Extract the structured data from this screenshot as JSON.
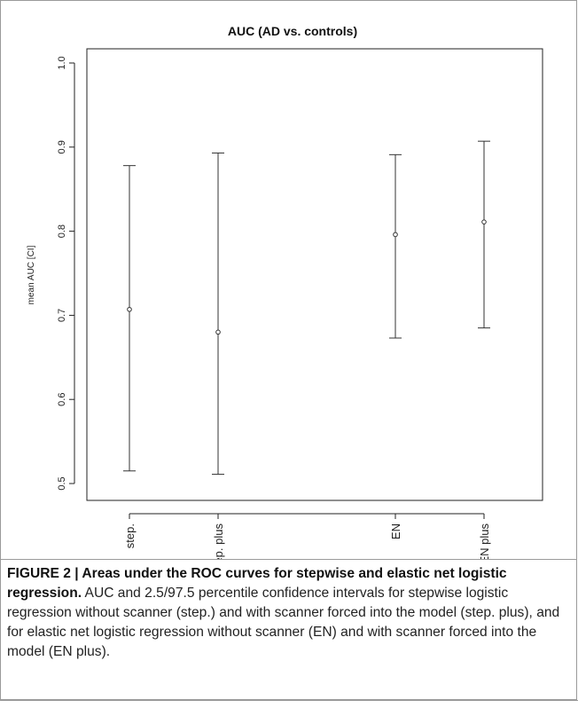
{
  "chart_data": {
    "type": "errorbar",
    "title": "AUC (AD vs. controls)",
    "xlabel": "",
    "ylabel": "mean AUC [CI]",
    "ylim": [
      0.5,
      1.0
    ],
    "yticks": [
      "0.5",
      "0.6",
      "0.7",
      "0.8",
      "0.9",
      "1.0"
    ],
    "categories": [
      "step.",
      "step. plus",
      "EN",
      "EN plus"
    ],
    "x_positions": [
      1,
      2,
      4,
      5
    ],
    "mean": [
      0.707,
      0.68,
      0.796,
      0.811
    ],
    "lower": [
      0.515,
      0.511,
      0.673,
      0.685
    ],
    "upper": [
      0.878,
      0.893,
      0.891,
      0.907
    ],
    "grid": false,
    "legend": "none"
  },
  "caption": {
    "figure_label": "FIGURE 2 | Areas under the ROC curves for stepwise and elastic net logistic regression.",
    "text": " AUC and 2.5/97.5 percentile confidence intervals for stepwise logistic regression without scanner (step.) and with scanner forced into the model (step. plus), and for elastic net logistic regression without scanner (EN) and with scanner forced into the model (EN plus)."
  }
}
